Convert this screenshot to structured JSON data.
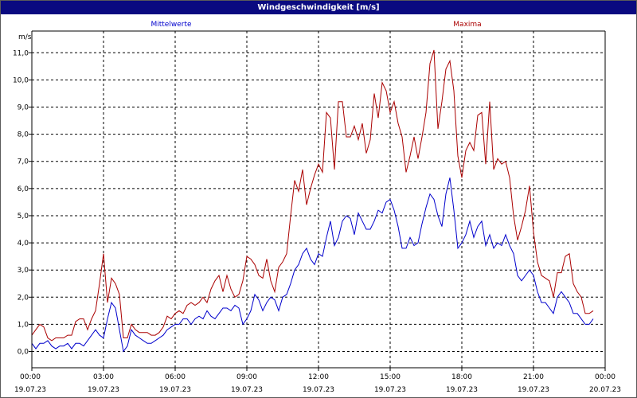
{
  "window": {
    "title": "Windgeschwindigkeit [m/s]"
  },
  "chart_data": {
    "type": "line",
    "title": "Windgeschwindigkeit [m/s]",
    "ylabel": "m/s",
    "xlabel": "",
    "ylim": [
      -0.6,
      11.8
    ],
    "yticks": [
      0.0,
      1.0,
      2.0,
      3.0,
      4.0,
      5.0,
      6.0,
      7.0,
      8.0,
      9.0,
      10.0,
      11.0
    ],
    "ytick_labels": [
      "0,0",
      "1,0",
      "2,0",
      "3,0",
      "4,0",
      "5,0",
      "6,0",
      "7,0",
      "8,0",
      "9,0",
      "10,0",
      "11,0"
    ],
    "xlim": [
      "19.07.23 00:00",
      "20.07.23 00:00"
    ],
    "xticks": [
      {
        "time": "00:00",
        "date": "19.07.23"
      },
      {
        "time": "03:00",
        "date": "19.07.23"
      },
      {
        "time": "06:00",
        "date": "19.07.23"
      },
      {
        "time": "09:00",
        "date": "19.07.23"
      },
      {
        "time": "12:00",
        "date": "19.07.23"
      },
      {
        "time": "15:00",
        "date": "19.07.23"
      },
      {
        "time": "18:00",
        "date": "19.07.23"
      },
      {
        "time": "21:00",
        "date": "19.07.23"
      },
      {
        "time": "00:00",
        "date": "20.07.23"
      }
    ],
    "grid": true,
    "legend_position": "top",
    "series": [
      {
        "name": "Mittelwerte",
        "color": "#0000cc",
        "points": [
          [
            "00:00",
            0.3
          ],
          [
            "00:10",
            0.1
          ],
          [
            "00:20",
            0.3
          ],
          [
            "00:30",
            0.3
          ],
          [
            "00:40",
            0.4
          ],
          [
            "00:50",
            0.2
          ],
          [
            "01:00",
            0.1
          ],
          [
            "01:10",
            0.2
          ],
          [
            "01:20",
            0.2
          ],
          [
            "01:30",
            0.3
          ],
          [
            "01:40",
            0.1
          ],
          [
            "01:50",
            0.3
          ],
          [
            "02:00",
            0.3
          ],
          [
            "02:10",
            0.2
          ],
          [
            "02:20",
            0.4
          ],
          [
            "02:30",
            0.6
          ],
          [
            "02:40",
            0.8
          ],
          [
            "02:50",
            0.6
          ],
          [
            "03:00",
            0.5
          ],
          [
            "03:10",
            1.2
          ],
          [
            "03:20",
            1.8
          ],
          [
            "03:30",
            1.6
          ],
          [
            "03:40",
            0.8
          ],
          [
            "03:50",
            0.0
          ],
          [
            "04:00",
            0.2
          ],
          [
            "04:10",
            0.8
          ],
          [
            "04:20",
            0.6
          ],
          [
            "04:30",
            0.5
          ],
          [
            "04:40",
            0.4
          ],
          [
            "04:50",
            0.3
          ],
          [
            "05:00",
            0.3
          ],
          [
            "05:10",
            0.4
          ],
          [
            "05:20",
            0.5
          ],
          [
            "05:30",
            0.6
          ],
          [
            "05:40",
            0.8
          ],
          [
            "05:50",
            0.9
          ],
          [
            "06:00",
            1.0
          ],
          [
            "06:10",
            1.0
          ],
          [
            "06:20",
            1.2
          ],
          [
            "06:30",
            1.2
          ],
          [
            "06:40",
            1.0
          ],
          [
            "06:50",
            1.2
          ],
          [
            "07:00",
            1.3
          ],
          [
            "07:10",
            1.2
          ],
          [
            "07:20",
            1.5
          ],
          [
            "07:30",
            1.3
          ],
          [
            "07:40",
            1.2
          ],
          [
            "07:50",
            1.4
          ],
          [
            "08:00",
            1.6
          ],
          [
            "08:10",
            1.6
          ],
          [
            "08:20",
            1.5
          ],
          [
            "08:30",
            1.7
          ],
          [
            "08:40",
            1.6
          ],
          [
            "08:50",
            1.0
          ],
          [
            "09:00",
            1.2
          ],
          [
            "09:10",
            1.5
          ],
          [
            "09:20",
            2.1
          ],
          [
            "09:30",
            1.9
          ],
          [
            "09:40",
            1.5
          ],
          [
            "09:50",
            1.8
          ],
          [
            "10:00",
            2.0
          ],
          [
            "10:10",
            1.9
          ],
          [
            "10:20",
            1.5
          ],
          [
            "10:30",
            2.0
          ],
          [
            "10:40",
            2.1
          ],
          [
            "10:50",
            2.5
          ],
          [
            "11:00",
            3.0
          ],
          [
            "11:10",
            3.2
          ],
          [
            "11:20",
            3.6
          ],
          [
            "11:30",
            3.8
          ],
          [
            "11:40",
            3.4
          ],
          [
            "11:50",
            3.2
          ],
          [
            "12:00",
            3.6
          ],
          [
            "12:10",
            3.5
          ],
          [
            "12:20",
            4.2
          ],
          [
            "12:30",
            4.8
          ],
          [
            "12:40",
            3.9
          ],
          [
            "12:50",
            4.2
          ],
          [
            "13:00",
            4.8
          ],
          [
            "13:10",
            5.0
          ],
          [
            "13:20",
            4.9
          ],
          [
            "13:30",
            4.3
          ],
          [
            "13:40",
            5.1
          ],
          [
            "13:50",
            4.8
          ],
          [
            "14:00",
            4.5
          ],
          [
            "14:10",
            4.5
          ],
          [
            "14:20",
            4.8
          ],
          [
            "14:30",
            5.2
          ],
          [
            "14:40",
            5.1
          ],
          [
            "14:50",
            5.5
          ],
          [
            "15:00",
            5.6
          ],
          [
            "15:10",
            5.2
          ],
          [
            "15:20",
            4.6
          ],
          [
            "15:30",
            3.8
          ],
          [
            "15:40",
            3.8
          ],
          [
            "15:50",
            4.2
          ],
          [
            "16:00",
            3.9
          ],
          [
            "16:10",
            4.0
          ],
          [
            "16:20",
            4.7
          ],
          [
            "16:30",
            5.3
          ],
          [
            "16:40",
            5.8
          ],
          [
            "16:50",
            5.6
          ],
          [
            "17:00",
            5.0
          ],
          [
            "17:10",
            4.6
          ],
          [
            "17:20",
            5.8
          ],
          [
            "17:30",
            6.4
          ],
          [
            "17:40",
            5.2
          ],
          [
            "17:50",
            3.8
          ],
          [
            "18:00",
            4.0
          ],
          [
            "18:10",
            4.3
          ],
          [
            "18:20",
            4.8
          ],
          [
            "18:30",
            4.2
          ],
          [
            "18:40",
            4.6
          ],
          [
            "18:50",
            4.8
          ],
          [
            "19:00",
            3.9
          ],
          [
            "19:10",
            4.3
          ],
          [
            "19:20",
            3.8
          ],
          [
            "19:30",
            4.0
          ],
          [
            "19:40",
            3.9
          ],
          [
            "19:50",
            4.3
          ],
          [
            "20:00",
            3.9
          ],
          [
            "20:10",
            3.6
          ],
          [
            "20:20",
            2.8
          ],
          [
            "20:30",
            2.6
          ],
          [
            "20:40",
            2.8
          ],
          [
            "20:50",
            3.0
          ],
          [
            "21:00",
            2.8
          ],
          [
            "21:10",
            2.2
          ],
          [
            "21:20",
            1.8
          ],
          [
            "21:30",
            1.8
          ],
          [
            "21:40",
            1.6
          ],
          [
            "21:50",
            1.4
          ],
          [
            "22:00",
            2.0
          ],
          [
            "22:10",
            2.2
          ],
          [
            "22:20",
            2.0
          ],
          [
            "22:30",
            1.8
          ],
          [
            "22:40",
            1.4
          ],
          [
            "22:50",
            1.4
          ],
          [
            "23:00",
            1.2
          ],
          [
            "23:10",
            1.0
          ],
          [
            "23:20",
            1.0
          ],
          [
            "23:30",
            1.2
          ]
        ]
      },
      {
        "name": "Maxima",
        "color": "#aa0000",
        "points": [
          [
            "00:00",
            0.6
          ],
          [
            "00:10",
            0.8
          ],
          [
            "00:20",
            1.0
          ],
          [
            "00:30",
            0.9
          ],
          [
            "00:40",
            0.5
          ],
          [
            "00:50",
            0.4
          ],
          [
            "01:00",
            0.5
          ],
          [
            "01:10",
            0.5
          ],
          [
            "01:20",
            0.5
          ],
          [
            "01:30",
            0.6
          ],
          [
            "01:40",
            0.6
          ],
          [
            "01:50",
            1.1
          ],
          [
            "02:00",
            1.2
          ],
          [
            "02:10",
            1.2
          ],
          [
            "02:20",
            0.8
          ],
          [
            "02:30",
            1.2
          ],
          [
            "02:40",
            1.5
          ],
          [
            "02:50",
            2.5
          ],
          [
            "03:00",
            3.6
          ],
          [
            "03:10",
            1.8
          ],
          [
            "03:20",
            2.7
          ],
          [
            "03:30",
            2.5
          ],
          [
            "03:40",
            2.1
          ],
          [
            "03:50",
            0.5
          ],
          [
            "04:00",
            0.5
          ],
          [
            "04:10",
            1.0
          ],
          [
            "04:20",
            0.8
          ],
          [
            "04:30",
            0.7
          ],
          [
            "04:40",
            0.7
          ],
          [
            "04:50",
            0.7
          ],
          [
            "05:00",
            0.6
          ],
          [
            "05:10",
            0.6
          ],
          [
            "05:20",
            0.7
          ],
          [
            "05:30",
            0.9
          ],
          [
            "05:40",
            1.3
          ],
          [
            "05:50",
            1.2
          ],
          [
            "06:00",
            1.4
          ],
          [
            "06:10",
            1.5
          ],
          [
            "06:20",
            1.4
          ],
          [
            "06:30",
            1.7
          ],
          [
            "06:40",
            1.8
          ],
          [
            "06:50",
            1.7
          ],
          [
            "07:00",
            1.8
          ],
          [
            "07:10",
            2.0
          ],
          [
            "07:20",
            1.8
          ],
          [
            "07:30",
            2.3
          ],
          [
            "07:40",
            2.6
          ],
          [
            "07:50",
            2.8
          ],
          [
            "08:00",
            2.2
          ],
          [
            "08:10",
            2.8
          ],
          [
            "08:20",
            2.3
          ],
          [
            "08:30",
            2.0
          ],
          [
            "08:40",
            2.1
          ],
          [
            "08:50",
            2.6
          ],
          [
            "09:00",
            3.5
          ],
          [
            "09:10",
            3.4
          ],
          [
            "09:20",
            3.2
          ],
          [
            "09:30",
            2.8
          ],
          [
            "09:40",
            2.7
          ],
          [
            "09:50",
            3.4
          ],
          [
            "10:00",
            2.6
          ],
          [
            "10:10",
            2.2
          ],
          [
            "10:20",
            3.1
          ],
          [
            "10:30",
            3.3
          ],
          [
            "10:40",
            3.6
          ],
          [
            "10:50",
            5.0
          ],
          [
            "11:00",
            6.3
          ],
          [
            "11:10",
            5.9
          ],
          [
            "11:20",
            6.7
          ],
          [
            "11:30",
            5.4
          ],
          [
            "11:40",
            6.0
          ],
          [
            "11:50",
            6.5
          ],
          [
            "12:00",
            6.9
          ],
          [
            "12:10",
            6.6
          ],
          [
            "12:20",
            8.8
          ],
          [
            "12:30",
            8.6
          ],
          [
            "12:40",
            6.7
          ],
          [
            "12:50",
            9.2
          ],
          [
            "13:00",
            9.2
          ],
          [
            "13:10",
            7.9
          ],
          [
            "13:20",
            7.9
          ],
          [
            "13:30",
            8.3
          ],
          [
            "13:40",
            7.8
          ],
          [
            "13:50",
            8.4
          ],
          [
            "14:00",
            7.3
          ],
          [
            "14:10",
            7.8
          ],
          [
            "14:20",
            9.5
          ],
          [
            "14:30",
            8.6
          ],
          [
            "14:40",
            9.9
          ],
          [
            "14:50",
            9.6
          ],
          [
            "15:00",
            8.8
          ],
          [
            "15:10",
            9.2
          ],
          [
            "15:20",
            8.4
          ],
          [
            "15:30",
            7.9
          ],
          [
            "15:40",
            6.6
          ],
          [
            "15:50",
            7.2
          ],
          [
            "16:00",
            7.9
          ],
          [
            "16:10",
            7.1
          ],
          [
            "16:20",
            7.9
          ],
          [
            "16:30",
            8.8
          ],
          [
            "16:40",
            10.6
          ],
          [
            "16:50",
            11.1
          ],
          [
            "17:00",
            8.2
          ],
          [
            "17:10",
            9.2
          ],
          [
            "17:20",
            10.4
          ],
          [
            "17:30",
            10.7
          ],
          [
            "17:40",
            9.6
          ],
          [
            "17:50",
            7.2
          ],
          [
            "18:00",
            6.4
          ],
          [
            "18:10",
            7.4
          ],
          [
            "18:20",
            7.7
          ],
          [
            "18:30",
            7.4
          ],
          [
            "18:40",
            8.7
          ],
          [
            "18:50",
            8.8
          ],
          [
            "19:00",
            6.9
          ],
          [
            "19:10",
            9.2
          ],
          [
            "19:20",
            6.7
          ],
          [
            "19:30",
            7.1
          ],
          [
            "19:40",
            6.9
          ],
          [
            "19:50",
            7.0
          ],
          [
            "20:00",
            6.4
          ],
          [
            "20:10",
            5.0
          ],
          [
            "20:20",
            4.1
          ],
          [
            "20:30",
            4.6
          ],
          [
            "20:40",
            5.2
          ],
          [
            "20:50",
            6.1
          ],
          [
            "21:00",
            4.4
          ],
          [
            "21:10",
            3.3
          ],
          [
            "21:20",
            2.8
          ],
          [
            "21:30",
            2.7
          ],
          [
            "21:40",
            2.6
          ],
          [
            "21:50",
            2.0
          ],
          [
            "22:00",
            2.9
          ],
          [
            "22:10",
            2.9
          ],
          [
            "22:20",
            3.5
          ],
          [
            "22:30",
            3.6
          ],
          [
            "22:40",
            2.5
          ],
          [
            "22:50",
            2.2
          ],
          [
            "23:00",
            2.0
          ],
          [
            "23:10",
            1.4
          ],
          [
            "23:20",
            1.4
          ],
          [
            "23:30",
            1.5
          ]
        ]
      }
    ]
  }
}
